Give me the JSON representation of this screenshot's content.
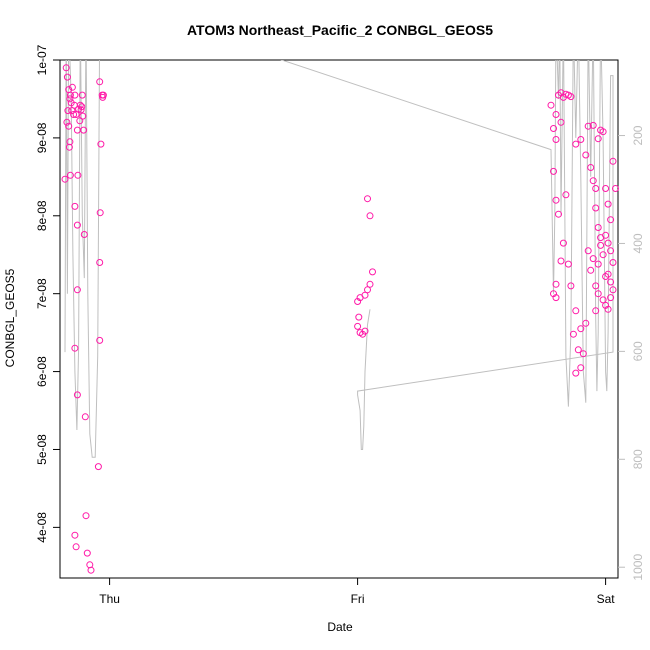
{
  "chart_data": {
    "type": "scatter",
    "title": "ATOM3 Northeast_Pacific_2 CONBGL_GEOS5",
    "xlabel": "Date",
    "ylabel": "CONBGL_GEOS5",
    "x_ticks": [
      "Thu",
      "Fri",
      "Sat"
    ],
    "y_ticks": [
      "4e-08",
      "5e-08",
      "6e-08",
      "7e-08",
      "8e-08",
      "9e-08",
      "1e-07"
    ],
    "y_tick_values": [
      4e-08,
      5e-08,
      6e-08,
      7e-08,
      8e-08,
      9e-08,
      1e-07
    ],
    "y_right_ticks": [
      "200",
      "400",
      "600",
      "800",
      "1000"
    ],
    "y_right_tick_values": [
      200,
      400,
      600,
      800,
      1000
    ],
    "xlim": [
      -0.2,
      2.05
    ],
    "ylim": [
      3.35e-08,
      1e-07
    ],
    "y_right_lim": [
      1020,
      60
    ],
    "grid": false,
    "colors": {
      "points": "#ff1aa8",
      "line": "#bfbfbf",
      "right_axis": "#bdbdbd"
    },
    "series": [
      {
        "kind": "points",
        "points": [
          [
            -0.175,
            9.9e-08
          ],
          [
            -0.17,
            9.78e-08
          ],
          [
            -0.165,
            9.62e-08
          ],
          [
            -0.16,
            9.5e-08
          ],
          [
            -0.168,
            9.35e-08
          ],
          [
            -0.172,
            9.2e-08
          ],
          [
            -0.165,
            9.15e-08
          ],
          [
            -0.158,
            9.55e-08
          ],
          [
            -0.155,
            9.45e-08
          ],
          [
            -0.152,
            9.35e-08
          ],
          [
            -0.15,
            9.65e-08
          ],
          [
            -0.145,
            9.3e-08
          ],
          [
            -0.142,
            9.42e-08
          ],
          [
            -0.14,
            9.55e-08
          ],
          [
            -0.135,
            9.3e-08
          ],
          [
            -0.13,
            9.1e-08
          ],
          [
            -0.16,
            8.95e-08
          ],
          [
            -0.162,
            8.88e-08
          ],
          [
            -0.18,
            8.47e-08
          ],
          [
            -0.158,
            8.52e-08
          ],
          [
            -0.125,
            9.37e-08
          ],
          [
            -0.12,
            9.22e-08
          ],
          [
            -0.118,
            9.42e-08
          ],
          [
            -0.115,
            9.36e-08
          ],
          [
            -0.112,
            9.4e-08
          ],
          [
            -0.11,
            9.55e-08
          ],
          [
            -0.108,
            9.28e-08
          ],
          [
            -0.105,
            9.1e-08
          ],
          [
            -0.14,
            8.12e-08
          ],
          [
            -0.128,
            8.52e-08
          ],
          [
            -0.13,
            7.88e-08
          ],
          [
            -0.13,
            7.05e-08
          ],
          [
            -0.14,
            6.3e-08
          ],
          [
            -0.13,
            5.7e-08
          ],
          [
            -0.102,
            7.76e-08
          ],
          [
            -0.098,
            5.42e-08
          ],
          [
            -0.04,
            9.72e-08
          ],
          [
            -0.03,
            9.55e-08
          ],
          [
            -0.028,
            9.52e-08
          ],
          [
            -0.025,
            9.55e-08
          ],
          [
            -0.035,
            8.92e-08
          ],
          [
            -0.038,
            8.04e-08
          ],
          [
            -0.04,
            7.4e-08
          ],
          [
            -0.04,
            6.4e-08
          ],
          [
            -0.045,
            4.78e-08
          ],
          [
            -0.095,
            4.15e-08
          ],
          [
            -0.14,
            3.9e-08
          ],
          [
            -0.135,
            3.75e-08
          ],
          [
            -0.09,
            3.67e-08
          ],
          [
            -0.08,
            3.52e-08
          ],
          [
            -0.075,
            3.45e-08
          ],
          [
            1.0,
            6.9e-08
          ],
          [
            1.01,
            6.95e-08
          ],
          [
            1.03,
            6.98e-08
          ],
          [
            1.04,
            7.05e-08
          ],
          [
            1.05,
            7.12e-08
          ],
          [
            1.06,
            7.28e-08
          ],
          [
            1.005,
            6.7e-08
          ],
          [
            1.0,
            6.58e-08
          ],
          [
            1.01,
            6.5e-08
          ],
          [
            1.02,
            6.48e-08
          ],
          [
            1.03,
            6.52e-08
          ],
          [
            1.05,
            8e-08
          ],
          [
            1.04,
            8.22e-08
          ],
          [
            1.78,
            9.42e-08
          ],
          [
            1.8,
            9.3e-08
          ],
          [
            1.81,
            9.55e-08
          ],
          [
            1.82,
            9.58e-08
          ],
          [
            1.83,
            9.52e-08
          ],
          [
            1.84,
            9.56e-08
          ],
          [
            1.85,
            9.55e-08
          ],
          [
            1.86,
            9.53e-08
          ],
          [
            1.79,
            9.12e-08
          ],
          [
            1.8,
            8.98e-08
          ],
          [
            1.82,
            9.2e-08
          ],
          [
            1.79,
            8.57e-08
          ],
          [
            1.8,
            8.2e-08
          ],
          [
            1.81,
            8.02e-08
          ],
          [
            1.84,
            8.27e-08
          ],
          [
            1.83,
            7.65e-08
          ],
          [
            1.82,
            7.42e-08
          ],
          [
            1.8,
            7.12e-08
          ],
          [
            1.79,
            7e-08
          ],
          [
            1.8,
            6.95e-08
          ],
          [
            1.85,
            7.38e-08
          ],
          [
            1.86,
            7.1e-08
          ],
          [
            1.88,
            6.78e-08
          ],
          [
            1.9,
            6.55e-08
          ],
          [
            1.92,
            6.62e-08
          ],
          [
            1.87,
            6.48e-08
          ],
          [
            1.89,
            6.28e-08
          ],
          [
            1.91,
            6.23e-08
          ],
          [
            1.88,
            5.98e-08
          ],
          [
            1.9,
            6.05e-08
          ],
          [
            1.88,
            8.92e-08
          ],
          [
            1.9,
            8.98e-08
          ],
          [
            1.92,
            8.78e-08
          ],
          [
            1.94,
            8.62e-08
          ],
          [
            1.96,
            8.35e-08
          ],
          [
            1.93,
            9.15e-08
          ],
          [
            1.95,
            9.16e-08
          ],
          [
            1.97,
            8.99e-08
          ],
          [
            1.98,
            9.1e-08
          ],
          [
            1.99,
            9.08e-08
          ],
          [
            1.95,
            8.45e-08
          ],
          [
            1.96,
            8.1e-08
          ],
          [
            1.97,
            7.85e-08
          ],
          [
            1.98,
            7.72e-08
          ],
          [
            1.99,
            7.5e-08
          ],
          [
            1.93,
            7.55e-08
          ],
          [
            1.94,
            7.3e-08
          ],
          [
            1.95,
            7.45e-08
          ],
          [
            1.96,
            7.1e-08
          ],
          [
            1.97,
            7e-08
          ],
          [
            2.0,
            8.35e-08
          ],
          [
            2.01,
            8.15e-08
          ],
          [
            2.02,
            7.95e-08
          ],
          [
            2.0,
            7.75e-08
          ],
          [
            2.01,
            7.65e-08
          ],
          [
            2.02,
            7.55e-08
          ],
          [
            2.03,
            7.4e-08
          ],
          [
            2.01,
            7.25e-08
          ],
          [
            2.02,
            7.15e-08
          ],
          [
            2.03,
            7.05e-08
          ],
          [
            2.0,
            6.85e-08
          ],
          [
            2.01,
            6.8e-08
          ],
          [
            2.02,
            6.95e-08
          ],
          [
            2.03,
            8.7e-08
          ],
          [
            2.04,
            8.35e-08
          ],
          [
            1.98,
            7.62e-08
          ],
          [
            1.97,
            7.38e-08
          ],
          [
            1.99,
            6.92e-08
          ],
          [
            1.96,
            6.78e-08
          ],
          [
            2.0,
            7.22e-08
          ]
        ]
      },
      {
        "kind": "line",
        "points": [
          [
            -0.18,
            6.25e-08
          ],
          [
            -0.175,
            1.05e-07
          ],
          [
            -0.17,
            7e-08
          ],
          [
            -0.165,
            1.05e-07
          ],
          [
            -0.155,
            9.5e-08
          ],
          [
            -0.148,
            7.5e-08
          ],
          [
            -0.14,
            6e-08
          ],
          [
            -0.132,
            5.25e-08
          ],
          [
            -0.125,
            6.3e-08
          ],
          [
            -0.118,
            1.05e-07
          ],
          [
            -0.11,
            8e-08
          ],
          [
            -0.102,
            7.2e-08
          ],
          [
            -0.095,
            1.05e-07
          ],
          [
            -0.088,
            7e-08
          ],
          [
            -0.08,
            5.2e-08
          ],
          [
            -0.07,
            4.9e-08
          ],
          [
            -0.058,
            4.9e-08
          ],
          [
            -0.048,
            6.2e-08
          ],
          [
            -0.04,
            1.05e-07
          ],
          [
            -0.032,
            1.05e-07
          ],
          [
            -0.025,
            1.05e-07
          ],
          [
            0.6,
            1.01e-07
          ],
          [
            1.78,
            8.85e-08
          ],
          [
            1.79,
            7e-08
          ],
          [
            1.795,
            8e-08
          ],
          [
            1.8,
            1.05e-07
          ],
          [
            1.81,
            9.5e-08
          ],
          [
            1.815,
            1.05e-07
          ],
          [
            1.82,
            8e-08
          ],
          [
            1.83,
            1.05e-07
          ],
          [
            1.84,
            6.2e-08
          ],
          [
            1.85,
            5.55e-08
          ],
          [
            1.86,
            6.5e-08
          ],
          [
            1.87,
            1.05e-07
          ],
          [
            1.88,
            9e-08
          ],
          [
            1.89,
            1.05e-07
          ],
          [
            1.9,
            8.5e-08
          ],
          [
            1.91,
            6e-08
          ],
          [
            1.92,
            5.6e-08
          ],
          [
            1.93,
            1.05e-07
          ],
          [
            1.94,
            8.5e-08
          ],
          [
            1.95,
            1.05e-07
          ],
          [
            1.96,
            6.7e-08
          ],
          [
            1.965,
            5.75e-08
          ],
          [
            1.97,
            6.5e-08
          ],
          [
            1.98,
            1.05e-07
          ],
          [
            1.99,
            9e-08
          ],
          [
            2.0,
            6e-08
          ],
          [
            2.005,
            5.75e-08
          ],
          [
            2.01,
            6.5e-08
          ],
          [
            2.02,
            9.8e-08
          ],
          [
            2.03,
            9.8e-08
          ],
          [
            2.03,
            6.25e-08
          ],
          [
            1.0,
            5.75e-08
          ],
          [
            1.0,
            5.7e-08
          ],
          [
            1.01,
            5.5e-08
          ],
          [
            1.015,
            5e-08
          ],
          [
            1.02,
            5e-08
          ],
          [
            1.025,
            5.3e-08
          ],
          [
            1.03,
            6e-08
          ],
          [
            1.04,
            6.6e-08
          ],
          [
            1.05,
            6.8e-08
          ]
        ]
      }
    ]
  }
}
